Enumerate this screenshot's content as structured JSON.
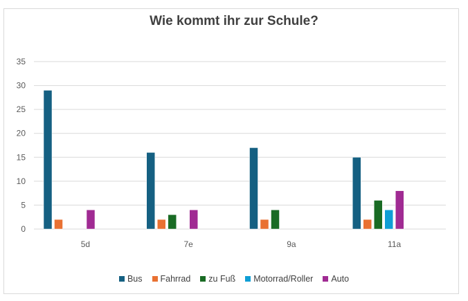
{
  "chart_data": {
    "type": "bar",
    "title": "Wie kommt ihr zur Schule?",
    "xlabel": "",
    "ylabel": "",
    "categories": [
      "5d",
      "7e",
      "9a",
      "11a"
    ],
    "ylim": [
      0,
      35
    ],
    "yticks": [
      "0",
      "5",
      "10",
      "15",
      "20",
      "25",
      "30",
      "35"
    ],
    "grid": true,
    "legend_position": "bottom",
    "series": [
      {
        "name": "Bus",
        "color": "#156082",
        "values": [
          29,
          16,
          17,
          15
        ]
      },
      {
        "name": "Fahrrad",
        "color": "#E97132",
        "values": [
          2,
          2,
          2,
          2
        ]
      },
      {
        "name": "zu Fuß",
        "color": "#196B24",
        "values": [
          0,
          3,
          4,
          6
        ]
      },
      {
        "name": "Motorrad/Roller",
        "color": "#0F9ED5",
        "values": [
          0,
          0,
          0,
          4
        ]
      },
      {
        "name": "Auto",
        "color": "#A02B93",
        "values": [
          4,
          4,
          0,
          8
        ]
      }
    ]
  }
}
